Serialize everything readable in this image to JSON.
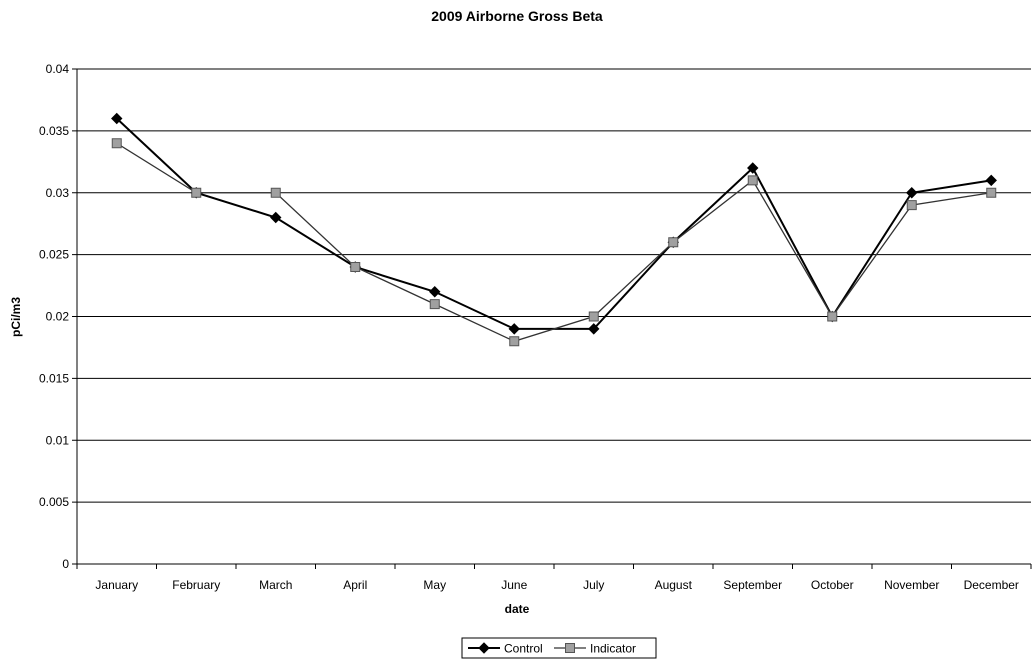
{
  "chart_data": {
    "type": "line",
    "title": "2009 Airborne Gross Beta",
    "xlabel": "date",
    "ylabel": "pCi/m3",
    "ylim": [
      0,
      0.04
    ],
    "yticks": [
      "0",
      "0.005",
      "0.01",
      "0.015",
      "0.02",
      "0.025",
      "0.03",
      "0.035",
      "0.04"
    ],
    "grid": "horizontal",
    "legend_position": "bottom",
    "categories": [
      "January",
      "February",
      "March",
      "April",
      "May",
      "June",
      "July",
      "August",
      "September",
      "October",
      "November",
      "December"
    ],
    "series": [
      {
        "name": "Control",
        "marker": "diamond",
        "color": "#000000",
        "values": [
          0.036,
          0.03,
          0.028,
          0.024,
          0.022,
          0.019,
          0.019,
          0.026,
          0.032,
          0.02,
          0.03,
          0.031
        ]
      },
      {
        "name": "Indicator",
        "marker": "square",
        "color": "#808080",
        "values": [
          0.034,
          0.03,
          0.03,
          0.024,
          0.021,
          0.018,
          0.02,
          0.026,
          0.031,
          0.02,
          0.029,
          0.03
        ]
      }
    ]
  }
}
